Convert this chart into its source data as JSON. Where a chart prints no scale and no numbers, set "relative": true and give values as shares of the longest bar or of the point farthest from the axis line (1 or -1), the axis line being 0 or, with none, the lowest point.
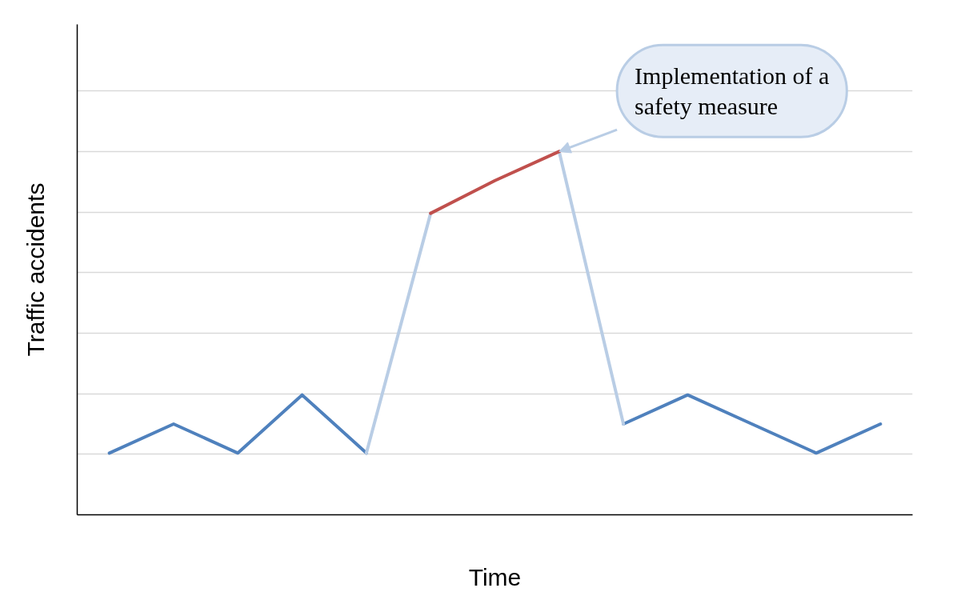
{
  "chart_data": {
    "type": "line",
    "relative": true,
    "xlabel": "Time",
    "ylabel": "Traffic accidents",
    "grid": "y",
    "marker": "none",
    "line_style": "solid",
    "categories": [
      null,
      null,
      null,
      null,
      null,
      null,
      null,
      null,
      null,
      null,
      null,
      null,
      null
    ],
    "series": [
      {
        "color": "#4f81bd",
        "values": [
          0.17,
          0.25,
          0.17,
          0.33,
          0.17,
          null,
          null,
          null,
          0.25,
          0.33,
          0.25,
          0.17,
          0.25
        ]
      },
      {
        "color": "#b9cde5",
        "values": [
          null,
          null,
          null,
          null,
          0.17,
          0.83,
          null,
          1,
          0.25,
          null,
          null,
          null,
          null
        ]
      },
      {
        "color": "#c0504d",
        "values": [
          null,
          null,
          null,
          null,
          null,
          0.83,
          0.92,
          1,
          null,
          null,
          null,
          null,
          null
        ]
      }
    ],
    "annotations": [
      "Implementation of a safety measure"
    ]
  }
}
